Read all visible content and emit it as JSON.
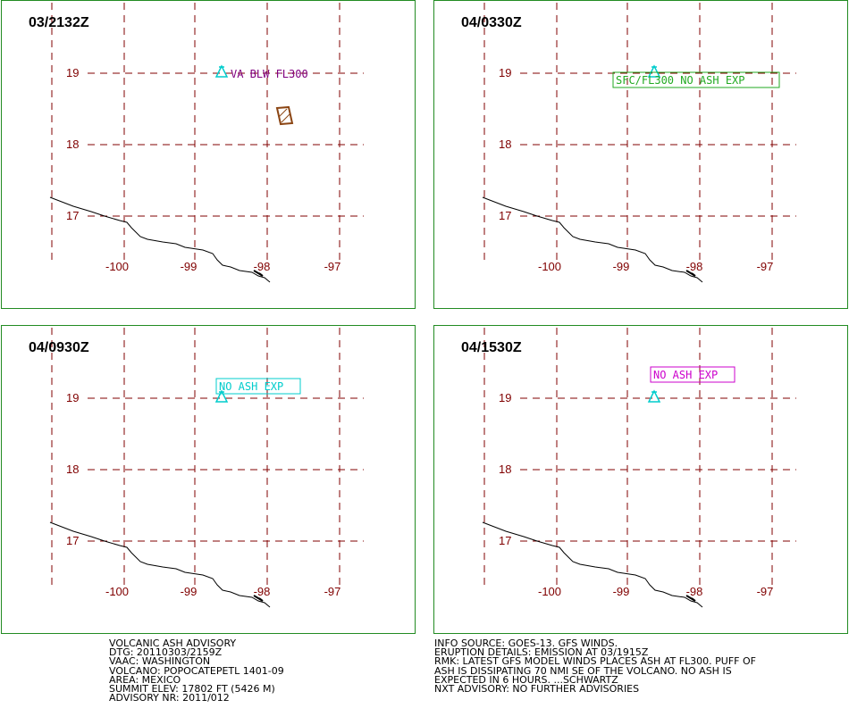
{
  "panels": [
    {
      "time": "03/2132Z",
      "annotation": "VA BLW FL300",
      "annotation_color": "#800080",
      "boxed": false,
      "show_polygon": true
    },
    {
      "time": "04/0330Z",
      "annotation": "SFC/FL300  NO ASH EXP",
      "annotation_color": "#22aa22",
      "boxed": true,
      "show_polygon": false
    },
    {
      "time": "04/0930Z",
      "annotation": "NO ASH EXP",
      "annotation_color": "#00cccc",
      "boxed": true,
      "show_polygon": false
    },
    {
      "time": "04/1530Z",
      "annotation": "NO ASH EXP",
      "annotation_color": "#cc00cc",
      "boxed": true,
      "show_polygon": false
    }
  ],
  "grid": {
    "lat_labels": [
      "19",
      "18",
      "17"
    ],
    "lon_labels": [
      "-100",
      "-99",
      "-98",
      "-97"
    ],
    "grid_color": "#800000",
    "volcano_color": "#00cccc",
    "ash_color": "#8b4513"
  },
  "advisory_left": [
    "VOLCANIC ASH ADVISORY",
    "DTG: 20110303/2159Z",
    "VAAC: WASHINGTON",
    "VOLCANO: POPOCATEPETL 1401-09",
    "AREA: MEXICO",
    "SUMMIT ELEV: 17802 FT (5426 M)",
    "ADVISORY NR: 2011/012"
  ],
  "advisory_right": [
    "INFO SOURCE: GOES-13. GFS WINDS.",
    "ERUPTION DETAILS: EMISSION AT 03/1915Z",
    "RMK: LATEST GFS MODEL WINDS PLACES ASH AT FL300. PUFF OF",
    "ASH IS DISSIPATING 70 NMI SE OF THE VOLCANO. NO ASH IS",
    "EXPECTED IN 6 HOURS. ...SCHWARTZ",
    "NXT ADVISORY: NO FURTHER ADVISORIES"
  ]
}
